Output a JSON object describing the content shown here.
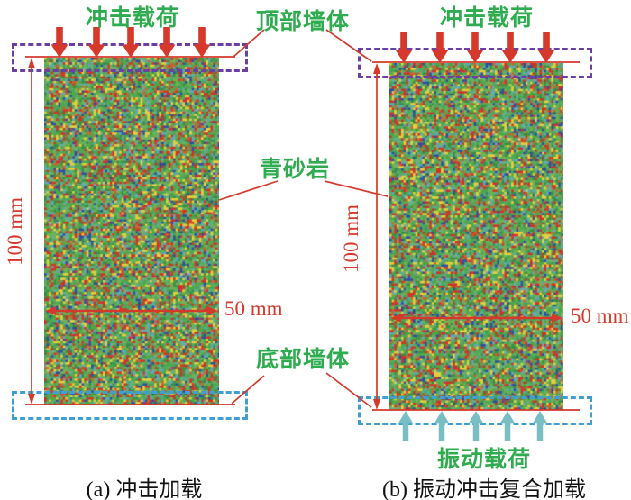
{
  "figure": {
    "annotations": {
      "top_wall_label": "顶部墙体",
      "specimen_label": "青砂岩",
      "bottom_wall_label": "底部墙体"
    },
    "panels": [
      {
        "caption": "(a) 冲击加载",
        "impact_load_label": "冲击载荷",
        "impact_arrow_count": 5,
        "height_dimension": "100 mm",
        "width_dimension": "50 mm"
      },
      {
        "caption": "(b) 振动冲击复合加载",
        "impact_load_label": "冲击载荷",
        "impact_arrow_count": 5,
        "vibration_load_label": "振动载荷",
        "vibration_arrow_count": 5,
        "height_dimension": "100 mm",
        "width_dimension": "50 mm"
      }
    ],
    "colors": {
      "label_green": "#2FAC4F",
      "annotation_red": "#D5392B",
      "top_wall_purple": "#6C3FA4",
      "bottom_wall_blue": "#3E9FD4",
      "vibration_teal": "#79BEC2",
      "caption_black": "#111111",
      "particle_palette": [
        "#4CA64C",
        "#6FB054",
        "#3C8B44",
        "#CC3328",
        "#E3CF3A",
        "#2E4C9E",
        "#5FA8B0",
        "#C9622F",
        "#57A867"
      ]
    }
  }
}
